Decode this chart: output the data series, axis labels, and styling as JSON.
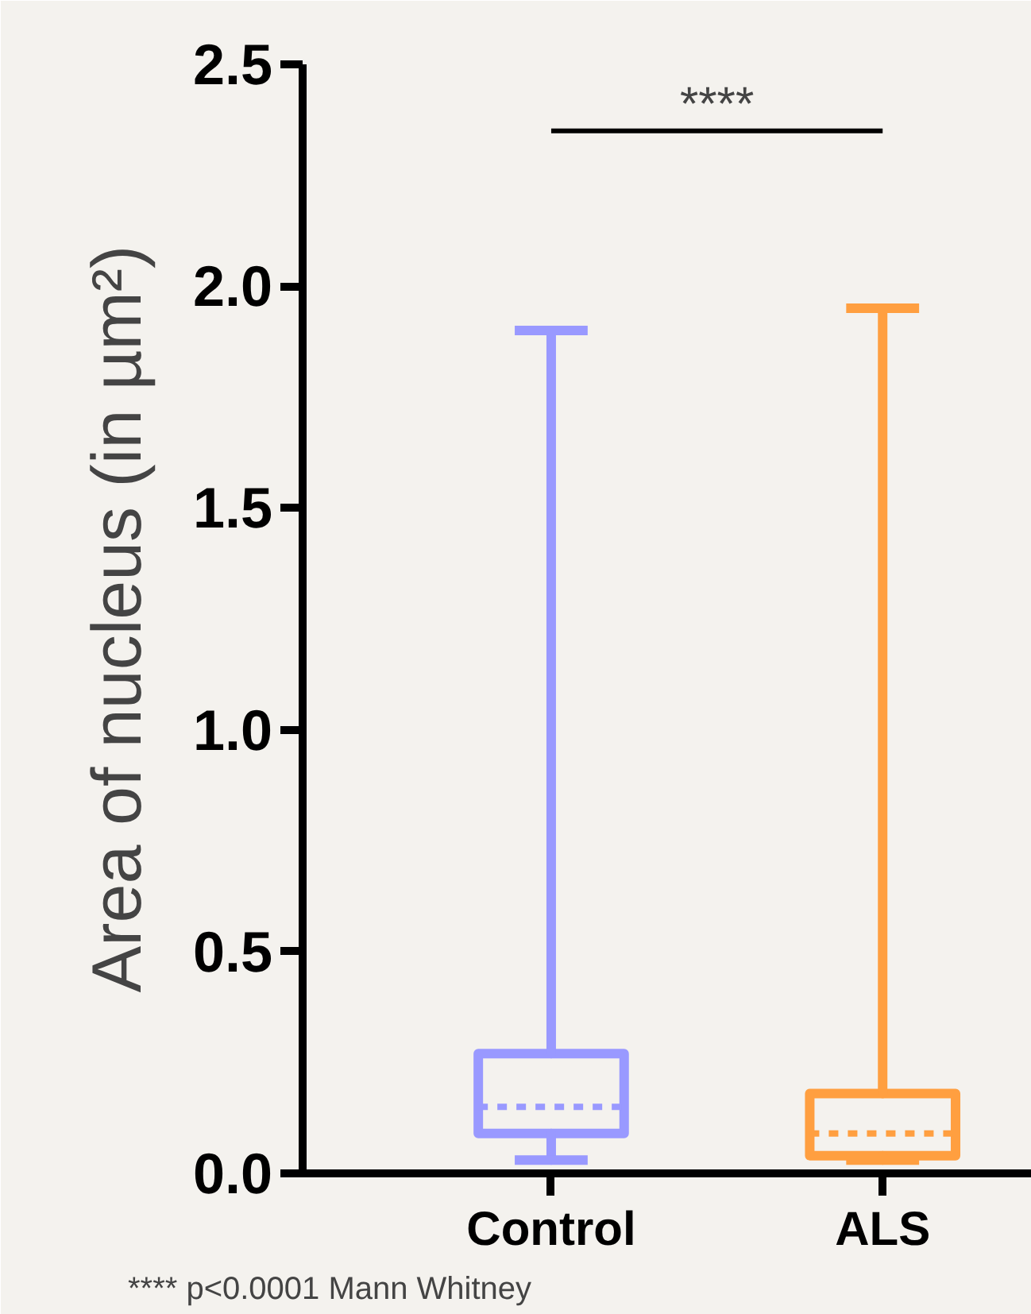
{
  "chart_data": {
    "type": "box",
    "ylabel": "Area of nucleus (in µm²)",
    "categories": [
      "Control",
      "ALS"
    ],
    "series": [
      {
        "color": "#9999ff",
        "boxes": [
          {
            "low": 0.03,
            "q1": 0.09,
            "median": 0.15,
            "q3": 0.27,
            "high": 1.9
          },
          null
        ]
      },
      {
        "color": "#ff9f40",
        "boxes": [
          null,
          {
            "low": 0.03,
            "q1": 0.04,
            "median": 0.09,
            "q3": 0.18,
            "high": 1.95
          }
        ]
      }
    ],
    "ylim": [
      0,
      2.5
    ],
    "yticks": [
      {
        "value": 0,
        "label": "0.0"
      },
      {
        "value": 0.5,
        "label": "0.5"
      },
      {
        "value": 1,
        "label": "1.0"
      },
      {
        "value": 1.5,
        "label": "1.5"
      },
      {
        "value": 2,
        "label": "2.0"
      },
      {
        "value": 2.5,
        "label": "2.5"
      }
    ],
    "annotations": [
      "****",
      "**** p<0.0001 Mann Whitney"
    ],
    "grid": false
  }
}
